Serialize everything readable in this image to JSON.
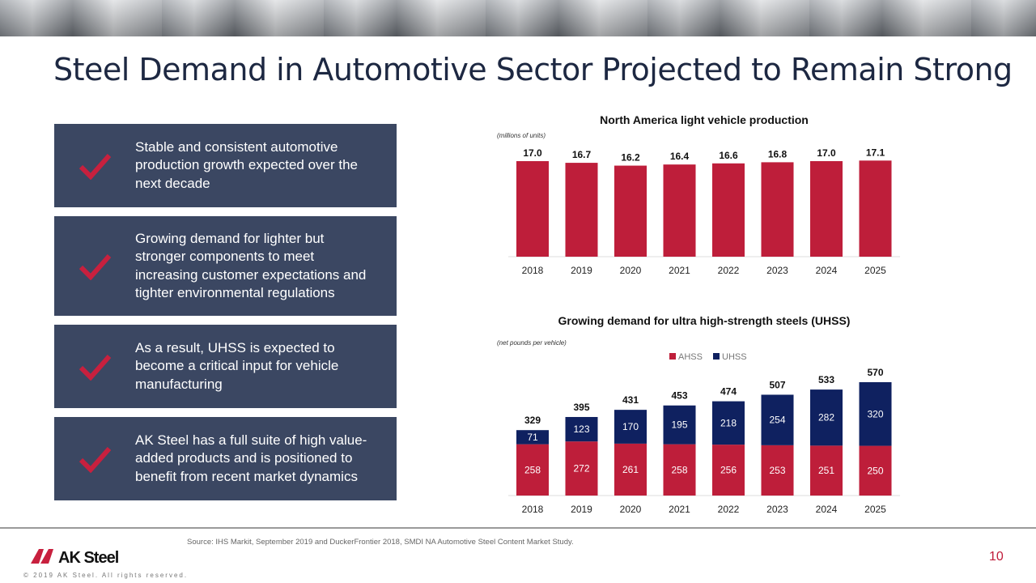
{
  "title": "Steel Demand in Automotive Sector Projected to Remain Strong",
  "bullets": [
    {
      "text": "Stable and consistent automotive production growth expected over the next decade"
    },
    {
      "text": "Growing demand for lighter but stronger components to meet increasing customer expectations and tighter environmental regulations"
    },
    {
      "text": "As a result, UHSS is expected to become a critical input for vehicle manufacturing"
    },
    {
      "text": "AK Steel has a full suite of high value-added products and is positioned to benefit from recent market dynamics"
    }
  ],
  "colors": {
    "red": "#be1e3a",
    "navy": "#0f2160",
    "box": "#3b4762",
    "title": "#1d2842"
  },
  "chart_data": [
    {
      "type": "bar",
      "title": "North America light vehicle production",
      "subtitle": "(millions of units)",
      "categories": [
        "2018",
        "2019",
        "2020",
        "2021",
        "2022",
        "2023",
        "2024",
        "2025"
      ],
      "values": [
        17.0,
        16.7,
        16.2,
        16.4,
        16.6,
        16.8,
        17.0,
        17.1
      ],
      "labels": [
        "17.0",
        "16.7",
        "16.2",
        "16.4",
        "16.6",
        "16.8",
        "17.0",
        "17.1"
      ],
      "ylim": [
        0,
        17.1
      ],
      "grid": false,
      "color": "#be1e3a"
    },
    {
      "type": "bar",
      "stacked": true,
      "title": "Growing demand for ultra high-strength steels (UHSS)",
      "subtitle": "(net pounds per vehicle)",
      "categories": [
        "2018",
        "2019",
        "2020",
        "2021",
        "2022",
        "2023",
        "2024",
        "2025"
      ],
      "series": [
        {
          "name": "AHSS",
          "values": [
            258,
            272,
            261,
            258,
            256,
            253,
            251,
            250
          ],
          "color": "#be1e3a"
        },
        {
          "name": "UHSS",
          "values": [
            71,
            123,
            170,
            195,
            218,
            254,
            282,
            320
          ],
          "color": "#0f2160"
        }
      ],
      "totals": [
        329,
        395,
        431,
        453,
        474,
        507,
        533,
        570
      ],
      "legend": "top",
      "grid": false,
      "ylim": [
        0,
        570
      ]
    }
  ],
  "footer": {
    "source": "Source:    IHS Markit, September 2019 and DuckerFrontier 2018, SMDI NA Automotive Steel Content Market Study.",
    "logo": "AK Steel",
    "copyright": "© 2019 AK Steel.  All rights reserved.",
    "page": "10"
  }
}
